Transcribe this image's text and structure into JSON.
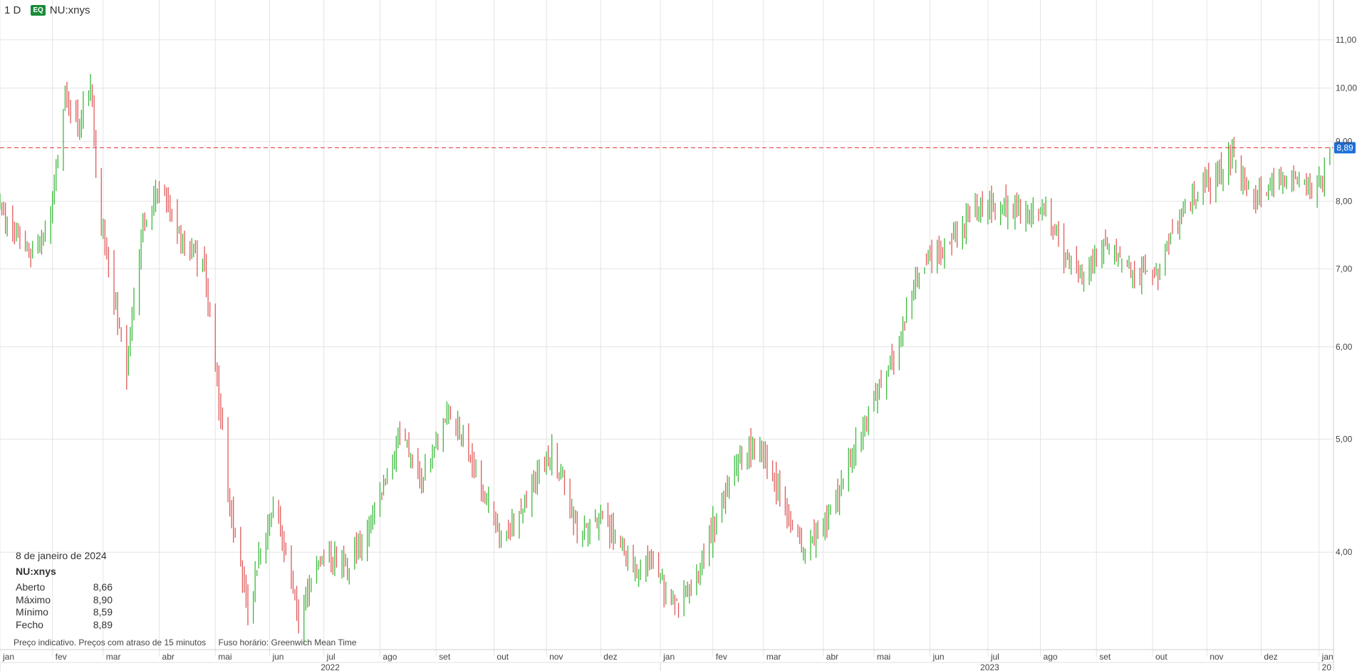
{
  "header": {
    "interval": "1 D",
    "badge": "EQ",
    "symbol": "NU:xnys"
  },
  "info": {
    "date": "8 de janeiro de 2024",
    "symbol": "NU:xnys",
    "rows": [
      {
        "label": "Aberto",
        "value": "8,66"
      },
      {
        "label": "Máximo",
        "value": "8,90"
      },
      {
        "label": "Mínimo",
        "value": "8,59"
      },
      {
        "label": "Fecho",
        "value": "8,89"
      }
    ]
  },
  "footer": {
    "note1": "Preço indicativo. Preços com atraso de 15 minutos",
    "note2": "Fuso horário: Greenwich Mean Time"
  },
  "chart_data": {
    "type": "ohlc",
    "y_scale": "log",
    "ylim": [
      3.3,
      11.9
    ],
    "x_range": [
      "2022-01-03",
      "2024-01-10"
    ],
    "grid": true,
    "y_ticks": [
      {
        "value": 11,
        "label": "11,00"
      },
      {
        "value": 10,
        "label": "10,00"
      },
      {
        "value": 9,
        "label": "9,00"
      },
      {
        "value": 8,
        "label": "8,00"
      },
      {
        "value": 7,
        "label": "7,00"
      },
      {
        "value": 6,
        "label": "6,00"
      },
      {
        "value": 5,
        "label": "5,00"
      },
      {
        "value": 4,
        "label": "4,00"
      }
    ],
    "month_ticks": [
      {
        "date": "2022-01-03",
        "label": "jan"
      },
      {
        "date": "2022-02-01",
        "label": "fev"
      },
      {
        "date": "2022-03-01",
        "label": "mar"
      },
      {
        "date": "2022-04-01",
        "label": "abr"
      },
      {
        "date": "2022-05-02",
        "label": "mai"
      },
      {
        "date": "2022-06-01",
        "label": "jun"
      },
      {
        "date": "2022-07-01",
        "label": "jul"
      },
      {
        "date": "2022-08-01",
        "label": "ago"
      },
      {
        "date": "2022-09-01",
        "label": "set"
      },
      {
        "date": "2022-10-03",
        "label": "out"
      },
      {
        "date": "2022-11-01",
        "label": "nov"
      },
      {
        "date": "2022-12-01",
        "label": "dez"
      },
      {
        "date": "2023-01-03",
        "label": "jan"
      },
      {
        "date": "2023-02-01",
        "label": "fev"
      },
      {
        "date": "2023-03-01",
        "label": "mar"
      },
      {
        "date": "2023-04-03",
        "label": "abr"
      },
      {
        "date": "2023-05-01",
        "label": "mai"
      },
      {
        "date": "2023-06-01",
        "label": "jun"
      },
      {
        "date": "2023-07-03",
        "label": "jul"
      },
      {
        "date": "2023-08-01",
        "label": "ago"
      },
      {
        "date": "2023-09-01",
        "label": "set"
      },
      {
        "date": "2023-10-02",
        "label": "out"
      },
      {
        "date": "2023-11-01",
        "label": "nov"
      },
      {
        "date": "2023-12-01",
        "label": "dez"
      },
      {
        "date": "2024-01-02",
        "label": "jan"
      }
    ],
    "year_ticks": [
      {
        "date": "2022-01-03",
        "label": "2022"
      },
      {
        "date": "2023-01-03",
        "label": "2023"
      },
      {
        "date": "2024-01-02",
        "label": "20"
      }
    ],
    "last_price": {
      "value": 8.89,
      "label": "8,89"
    },
    "key_points": [
      {
        "date": "2022-01-03",
        "close": 7.9
      },
      {
        "date": "2022-01-20",
        "close": 7.1
      },
      {
        "date": "2022-01-31",
        "close": 7.8
      },
      {
        "date": "2022-02-08",
        "close": 9.9
      },
      {
        "date": "2022-02-15",
        "close": 9.3
      },
      {
        "date": "2022-02-22",
        "close": 10.0
      },
      {
        "date": "2022-02-28",
        "close": 7.6
      },
      {
        "date": "2022-03-14",
        "close": 5.7
      },
      {
        "date": "2022-03-22",
        "close": 7.5
      },
      {
        "date": "2022-04-01",
        "close": 8.2
      },
      {
        "date": "2022-04-12",
        "close": 7.5
      },
      {
        "date": "2022-04-26",
        "close": 7.0
      },
      {
        "date": "2022-05-11",
        "close": 4.3
      },
      {
        "date": "2022-05-20",
        "close": 3.6
      },
      {
        "date": "2022-06-03",
        "close": 4.4
      },
      {
        "date": "2022-06-17",
        "close": 3.5
      },
      {
        "date": "2022-07-01",
        "close": 4.0
      },
      {
        "date": "2022-07-15",
        "close": 3.9
      },
      {
        "date": "2022-07-29",
        "close": 4.3
      },
      {
        "date": "2022-08-12",
        "close": 5.1
      },
      {
        "date": "2022-08-24",
        "close": 4.6
      },
      {
        "date": "2022-09-09",
        "close": 5.3
      },
      {
        "date": "2022-09-23",
        "close": 4.7
      },
      {
        "date": "2022-10-07",
        "close": 4.1
      },
      {
        "date": "2022-10-20",
        "close": 4.4
      },
      {
        "date": "2022-11-04",
        "close": 4.9
      },
      {
        "date": "2022-11-18",
        "close": 4.2
      },
      {
        "date": "2022-12-02",
        "close": 4.3
      },
      {
        "date": "2022-12-16",
        "close": 3.9
      },
      {
        "date": "2022-12-30",
        "close": 3.9
      },
      {
        "date": "2023-01-09",
        "close": 3.6
      },
      {
        "date": "2023-01-20",
        "close": 3.7
      },
      {
        "date": "2023-02-01",
        "close": 4.2
      },
      {
        "date": "2023-02-15",
        "close": 4.8
      },
      {
        "date": "2023-02-28",
        "close": 4.9
      },
      {
        "date": "2023-03-10",
        "close": 4.5
      },
      {
        "date": "2023-03-23",
        "close": 4.0
      },
      {
        "date": "2023-04-06",
        "close": 4.3
      },
      {
        "date": "2023-04-20",
        "close": 4.9
      },
      {
        "date": "2023-05-05",
        "close": 5.6
      },
      {
        "date": "2023-05-15",
        "close": 6.0
      },
      {
        "date": "2023-05-26",
        "close": 7.0
      },
      {
        "date": "2023-06-09",
        "close": 7.3
      },
      {
        "date": "2023-06-23",
        "close": 7.8
      },
      {
        "date": "2023-07-07",
        "close": 7.9
      },
      {
        "date": "2023-07-21",
        "close": 7.8
      },
      {
        "date": "2023-08-04",
        "close": 7.9
      },
      {
        "date": "2023-08-14",
        "close": 7.2
      },
      {
        "date": "2023-08-25",
        "close": 6.9
      },
      {
        "date": "2023-09-08",
        "close": 7.4
      },
      {
        "date": "2023-09-22",
        "close": 6.9
      },
      {
        "date": "2023-10-06",
        "close": 7.0
      },
      {
        "date": "2023-10-20",
        "close": 7.9
      },
      {
        "date": "2023-11-03",
        "close": 8.3
      },
      {
        "date": "2023-11-10",
        "close": 8.5
      },
      {
        "date": "2023-11-15",
        "close": 8.8
      },
      {
        "date": "2023-11-24",
        "close": 8.1
      },
      {
        "date": "2023-12-08",
        "close": 8.2
      },
      {
        "date": "2023-12-15",
        "close": 8.4
      },
      {
        "date": "2023-12-29",
        "close": 8.2
      },
      {
        "date": "2024-01-04",
        "close": 8.3
      },
      {
        "date": "2024-01-05",
        "close": 8.66
      },
      {
        "date": "2024-01-08",
        "open": 8.66,
        "high": 8.9,
        "low": 8.59,
        "close": 8.89
      }
    ],
    "colors": {
      "up": "#3cb93c",
      "down": "#e05a5a",
      "grid": "#e4e4e4",
      "price_line": "#e03030",
      "price_badge": "#1e6fd9"
    }
  }
}
